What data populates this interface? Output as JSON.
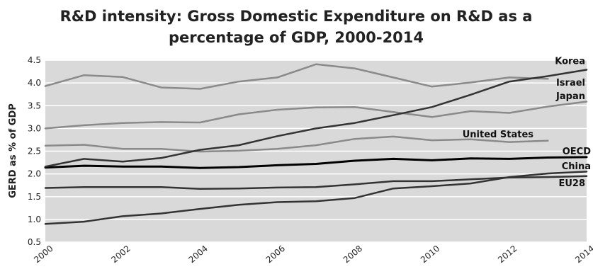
{
  "chart_data": {
    "type": "line",
    "title_line1": "R&D intensity: Gross Domestic Expenditure on R&D as a",
    "title_line2": "percentage of GDP, 2000-2014",
    "xlabel": "",
    "ylabel": "GERD as % of GDP",
    "x": [
      2000,
      2001,
      2002,
      2003,
      2004,
      2005,
      2006,
      2007,
      2008,
      2009,
      2010,
      2011,
      2012,
      2013,
      2014
    ],
    "x_tick_labels": [
      "2000",
      "2002",
      "2004",
      "2006",
      "2008",
      "2010",
      "2012",
      "2014"
    ],
    "y_tick_labels": [
      "0.5",
      "1.0",
      "1.5",
      "2.0",
      "2.5",
      "3.0",
      "3.5",
      "4.0",
      "4.5"
    ],
    "ylim": [
      0.5,
      4.5
    ],
    "xlim": [
      2000,
      2014
    ],
    "grid": "horizontal",
    "series": [
      {
        "name": "Korea",
        "color": "#333333",
        "width": 2.5,
        "values": [
          2.16,
          2.33,
          2.27,
          2.35,
          2.53,
          2.63,
          2.83,
          3.0,
          3.12,
          3.29,
          3.47,
          3.74,
          4.03,
          4.15,
          4.29
        ]
      },
      {
        "name": "Israel",
        "color": "#8a8a8a",
        "width": 2.5,
        "values": [
          3.93,
          4.17,
          4.13,
          3.9,
          3.87,
          4.03,
          4.12,
          4.41,
          4.32,
          4.12,
          3.92,
          4.01,
          4.12,
          4.09,
          null
        ]
      },
      {
        "name": "Japan",
        "color": "#8a8a8a",
        "width": 2.5,
        "values": [
          3.0,
          3.07,
          3.12,
          3.14,
          3.13,
          3.31,
          3.41,
          3.46,
          3.47,
          3.36,
          3.25,
          3.38,
          3.34,
          3.48,
          3.59
        ]
      },
      {
        "name": "United States",
        "color": "#8a8a8a",
        "width": 2.5,
        "values": [
          2.62,
          2.64,
          2.55,
          2.55,
          2.49,
          2.51,
          2.55,
          2.63,
          2.77,
          2.82,
          2.74,
          2.76,
          2.7,
          2.73,
          null
        ]
      },
      {
        "name": "OECD",
        "color": "#000000",
        "width": 3,
        "values": [
          2.14,
          2.18,
          2.16,
          2.16,
          2.13,
          2.15,
          2.19,
          2.22,
          2.29,
          2.33,
          2.3,
          2.34,
          2.33,
          2.36,
          2.37
        ]
      },
      {
        "name": "China",
        "color": "#333333",
        "width": 2.5,
        "values": [
          0.9,
          0.95,
          1.07,
          1.13,
          1.23,
          1.32,
          1.38,
          1.4,
          1.47,
          1.68,
          1.73,
          1.79,
          1.93,
          2.01,
          2.05
        ]
      },
      {
        "name": "EU28",
        "color": "#333333",
        "width": 2.5,
        "values": [
          1.69,
          1.71,
          1.71,
          1.71,
          1.67,
          1.68,
          1.7,
          1.71,
          1.77,
          1.84,
          1.84,
          1.88,
          1.92,
          1.93,
          1.95
        ]
      }
    ],
    "labels": [
      "Korea",
      "Israel",
      "Japan",
      "United States",
      "OECD",
      "China",
      "EU28"
    ]
  }
}
